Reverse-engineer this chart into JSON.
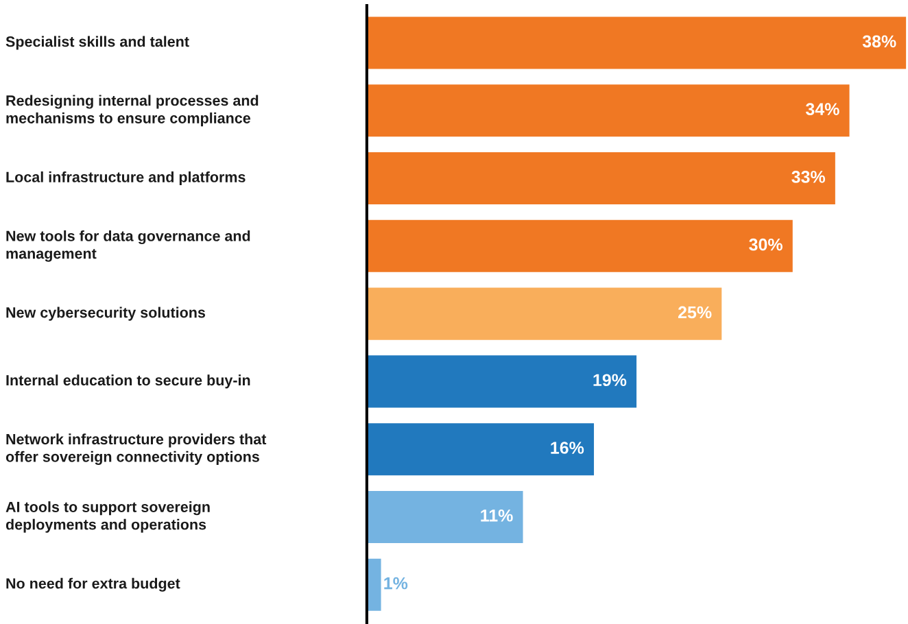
{
  "chart_data": {
    "type": "bar",
    "orientation": "horizontal",
    "grid": false,
    "legend": false,
    "tick_labels": "y",
    "value_labels": [
      "38%",
      "34%",
      "33%",
      "30%",
      "25%",
      "19%",
      "16%",
      "11%",
      "1%"
    ],
    "categories": [
      "Specialist skills and talent",
      "Redesigning internal processes and\nmechanisms to ensure compliance",
      "Local infrastructure and platforms",
      "New tools for data governance and\nmanagement",
      "New cybersecurity solutions",
      "Internal education to secure buy-in",
      "Network infrastructure providers that\noffer sovereign connectivity options",
      "AI tools to support sovereign\ndeployments and operations",
      "No need for extra budget"
    ],
    "values": [
      38,
      34,
      33,
      30,
      25,
      19,
      16,
      11,
      1
    ],
    "colors": [
      "#f07823",
      "#f07823",
      "#f07823",
      "#f07823",
      "#f9ae5b",
      "#2179be",
      "#2179be",
      "#74b3e1",
      "#74b3e1"
    ]
  }
}
